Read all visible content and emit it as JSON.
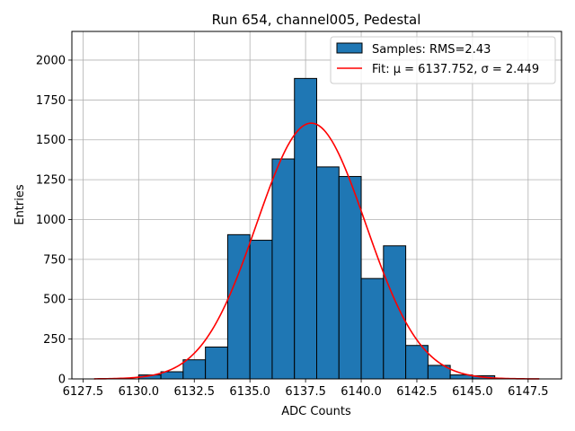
{
  "chart_data": {
    "type": "bar",
    "title": "Run 654, channel005, Pedestal",
    "xlabel": "ADC Counts",
    "ylabel": "Entries",
    "xlim": [
      6127.0,
      6149.0
    ],
    "ylim": [
      0,
      2180
    ],
    "xticks": [
      6127.5,
      6130.0,
      6132.5,
      6135.0,
      6137.5,
      6140.0,
      6142.5,
      6145.0,
      6147.5
    ],
    "xtick_labels": [
      "6127.5",
      "6130.0",
      "6132.5",
      "6135.0",
      "6137.5",
      "6140.0",
      "6142.5",
      "6145.0",
      "6147.5"
    ],
    "yticks": [
      0,
      250,
      500,
      750,
      1000,
      1250,
      1500,
      1750,
      2000
    ],
    "ytick_labels": [
      "0",
      "250",
      "500",
      "750",
      "1000",
      "1250",
      "1500",
      "1750",
      "2000"
    ],
    "grid": true,
    "legend_position": "top-right",
    "histogram": {
      "name": "Samples: RMS=2.43",
      "color": "#1f77b4",
      "edge_color": "#000000",
      "bins": [
        {
          "x0": 6130,
          "x1": 6131,
          "count": 25
        },
        {
          "x0": 6131,
          "x1": 6132,
          "count": 45
        },
        {
          "x0": 6132,
          "x1": 6133,
          "count": 120
        },
        {
          "x0": 6133,
          "x1": 6134,
          "count": 200
        },
        {
          "x0": 6134,
          "x1": 6135,
          "count": 905
        },
        {
          "x0": 6135,
          "x1": 6136,
          "count": 870
        },
        {
          "x0": 6136,
          "x1": 6137,
          "count": 1380
        },
        {
          "x0": 6137,
          "x1": 6138,
          "count": 1885
        },
        {
          "x0": 6138,
          "x1": 6139,
          "count": 1330
        },
        {
          "x0": 6139,
          "x1": 6140,
          "count": 1270
        },
        {
          "x0": 6140,
          "x1": 6141,
          "count": 630
        },
        {
          "x0": 6141,
          "x1": 6142,
          "count": 835
        },
        {
          "x0": 6142,
          "x1": 6143,
          "count": 210
        },
        {
          "x0": 6143,
          "x1": 6144,
          "count": 85
        },
        {
          "x0": 6144,
          "x1": 6145,
          "count": 25
        },
        {
          "x0": 6145,
          "x1": 6146,
          "count": 20
        }
      ]
    },
    "fit": {
      "name": "Fit: μ = 6137.752, σ = 2.449",
      "color": "#ff0000",
      "mu": 6137.752,
      "sigma": 2.449,
      "amplitude": 1605,
      "x_range": [
        6128.0,
        6148.0
      ]
    }
  }
}
